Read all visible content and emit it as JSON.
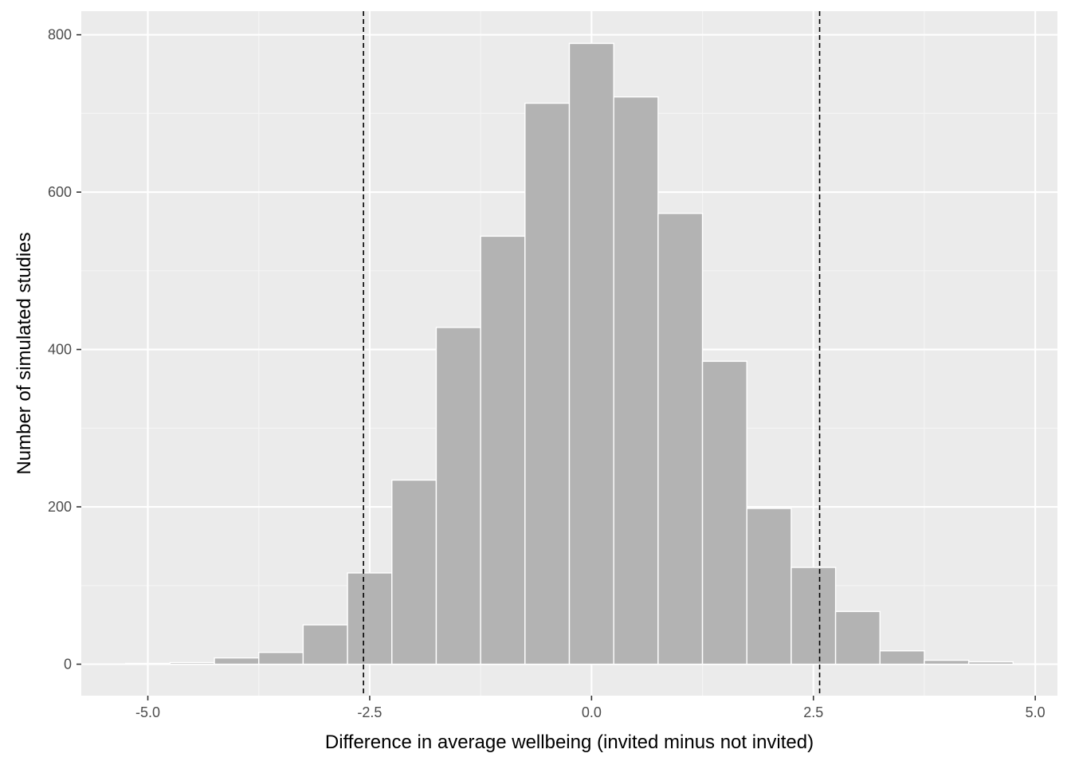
{
  "chart_data": {
    "type": "bar",
    "subtype": "histogram",
    "title": "",
    "xlabel": "Difference in average wellbeing (invited minus not invited)",
    "ylabel": "Number of simulated studies",
    "xlim": [
      -5.75,
      5.25
    ],
    "ylim": [
      -40,
      830
    ],
    "x_ticks": [
      -5.0,
      -2.5,
      0.0,
      2.5,
      5.0
    ],
    "x_tick_labels": [
      "-5.0",
      "-2.5",
      "0.0",
      "2.5",
      "5.0"
    ],
    "y_ticks": [
      0,
      200,
      400,
      600,
      800
    ],
    "y_tick_labels": [
      "0",
      "200",
      "400",
      "600",
      "800"
    ],
    "bin_width": 0.5,
    "bins": [
      {
        "x0": -5.25,
        "x1": -4.75,
        "count": 1
      },
      {
        "x0": -4.75,
        "x1": -4.25,
        "count": 2
      },
      {
        "x0": -4.25,
        "x1": -3.75,
        "count": 8
      },
      {
        "x0": -3.75,
        "x1": -3.25,
        "count": 15
      },
      {
        "x0": -3.25,
        "x1": -2.75,
        "count": 50
      },
      {
        "x0": -2.75,
        "x1": -2.25,
        "count": 116
      },
      {
        "x0": -2.25,
        "x1": -1.75,
        "count": 234
      },
      {
        "x0": -1.75,
        "x1": -1.25,
        "count": 428
      },
      {
        "x0": -1.25,
        "x1": -0.75,
        "count": 544
      },
      {
        "x0": -0.75,
        "x1": -0.25,
        "count": 713
      },
      {
        "x0": -0.25,
        "x1": 0.25,
        "count": 789
      },
      {
        "x0": 0.25,
        "x1": 0.75,
        "count": 721
      },
      {
        "x0": 0.75,
        "x1": 1.25,
        "count": 573
      },
      {
        "x0": 1.25,
        "x1": 1.75,
        "count": 385
      },
      {
        "x0": 1.75,
        "x1": 2.25,
        "count": 198
      },
      {
        "x0": 2.25,
        "x1": 2.75,
        "count": 123
      },
      {
        "x0": 2.75,
        "x1": 3.25,
        "count": 67
      },
      {
        "x0": 3.25,
        "x1": 3.75,
        "count": 17
      },
      {
        "x0": 3.75,
        "x1": 4.25,
        "count": 5
      },
      {
        "x0": 4.25,
        "x1": 4.75,
        "count": 3
      }
    ],
    "reference_lines": [
      {
        "x": -2.57,
        "style": "dashed"
      },
      {
        "x": 2.57,
        "style": "dashed"
      }
    ],
    "grid": true,
    "legend": "none"
  },
  "colors": {
    "panel_background": "#ebebeb",
    "grid_major": "#ffffff",
    "grid_minor": "#f5f5f5",
    "bar_fill": "#b3b3b3",
    "bar_outline": "#ffffff",
    "reference_line": "#000000",
    "tick_label": "#4d4d4d",
    "axis_title": "#000000",
    "tick_mark": "#333333"
  }
}
